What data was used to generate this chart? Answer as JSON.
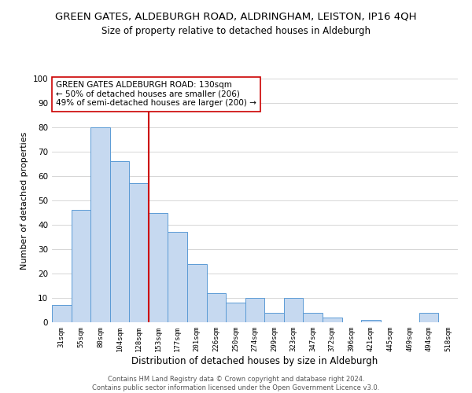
{
  "title": "GREEN GATES, ALDEBURGH ROAD, ALDRINGHAM, LEISTON, IP16 4QH",
  "subtitle": "Size of property relative to detached houses in Aldeburgh",
  "xlabel": "Distribution of detached houses by size in Aldeburgh",
  "ylabel": "Number of detached properties",
  "categories": [
    "31sqm",
    "55sqm",
    "80sqm",
    "104sqm",
    "128sqm",
    "153sqm",
    "177sqm",
    "201sqm",
    "226sqm",
    "250sqm",
    "274sqm",
    "299sqm",
    "323sqm",
    "347sqm",
    "372sqm",
    "396sqm",
    "421sqm",
    "445sqm",
    "469sqm",
    "494sqm",
    "518sqm"
  ],
  "values": [
    7,
    46,
    80,
    66,
    57,
    45,
    37,
    24,
    12,
    8,
    10,
    4,
    10,
    4,
    2,
    0,
    1,
    0,
    0,
    4,
    0
  ],
  "bar_color": "#c6d9f0",
  "bar_edge_color": "#5b9bd5",
  "vline_x": 4.5,
  "vline_color": "#cc0000",
  "annotation_text": "GREEN GATES ALDEBURGH ROAD: 130sqm\n← 50% of detached houses are smaller (206)\n49% of semi-detached houses are larger (200) →",
  "annotation_box_color": "#ffffff",
  "annotation_box_edge": "#cc0000",
  "ylim": [
    0,
    100
  ],
  "yticks": [
    0,
    10,
    20,
    30,
    40,
    50,
    60,
    70,
    80,
    90,
    100
  ],
  "grid_color": "#d0d0d0",
  "background_color": "#ffffff",
  "footer_line1": "Contains HM Land Registry data © Crown copyright and database right 2024.",
  "footer_line2": "Contains public sector information licensed under the Open Government Licence v3.0."
}
